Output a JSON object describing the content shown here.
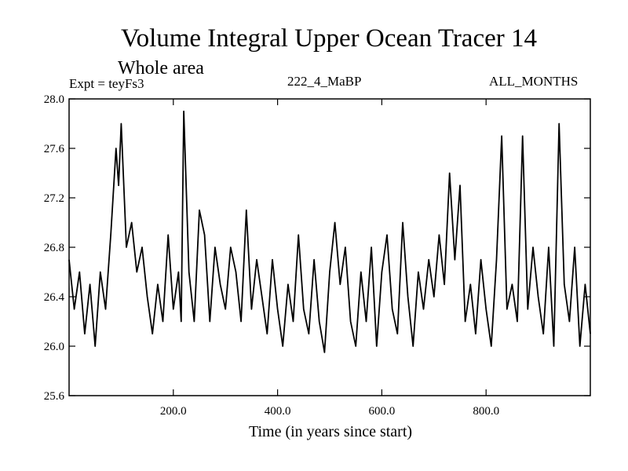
{
  "header": {
    "title": "Volume Integral Upper Ocean Tracer 14",
    "subtitle": "Whole area",
    "experiment": "Expt = teyFs3",
    "run": "222_4_MaBP",
    "months": "ALL_MONTHS"
  },
  "chart_data": {
    "type": "line",
    "title": "Volume Integral Upper Ocean Tracer 14",
    "subtitle": "Whole area",
    "xlabel": "Time (in years since start)",
    "ylabel": "",
    "xlim": [
      0,
      1000
    ],
    "ylim": [
      25.6,
      28.0
    ],
    "xticks": [
      200,
      400,
      600,
      800
    ],
    "xtick_labels": [
      "200.0",
      "400.0",
      "600.0",
      "800.0"
    ],
    "yticks": [
      25.6,
      26.0,
      26.4,
      26.8,
      27.2,
      27.6,
      28.0
    ],
    "ytick_labels": [
      "25.6",
      "26.0",
      "26.4",
      "26.8",
      "27.2",
      "27.6",
      "28.0"
    ],
    "grid": false,
    "series": [
      {
        "name": "Tracer 14",
        "x": [
          0,
          10,
          20,
          30,
          40,
          50,
          60,
          70,
          80,
          90,
          95,
          100,
          110,
          120,
          130,
          140,
          150,
          160,
          170,
          180,
          190,
          200,
          210,
          215,
          220,
          230,
          240,
          250,
          260,
          270,
          280,
          290,
          300,
          310,
          320,
          330,
          340,
          350,
          360,
          370,
          380,
          390,
          400,
          410,
          420,
          430,
          440,
          450,
          460,
          470,
          480,
          490,
          500,
          510,
          520,
          530,
          540,
          550,
          560,
          570,
          580,
          590,
          600,
          610,
          620,
          630,
          640,
          650,
          660,
          670,
          680,
          690,
          700,
          710,
          720,
          730,
          740,
          750,
          760,
          770,
          780,
          790,
          800,
          810,
          820,
          830,
          840,
          850,
          860,
          870,
          880,
          890,
          900,
          910,
          920,
          930,
          940,
          950,
          960,
          970,
          980,
          990,
          1000
        ],
        "values": [
          26.7,
          26.3,
          26.6,
          26.1,
          26.5,
          26.0,
          26.6,
          26.3,
          26.9,
          27.6,
          27.3,
          27.8,
          26.8,
          27.0,
          26.6,
          26.8,
          26.4,
          26.1,
          26.5,
          26.2,
          26.9,
          26.3,
          26.6,
          26.2,
          27.9,
          26.6,
          26.2,
          27.1,
          26.9,
          26.2,
          26.8,
          26.5,
          26.3,
          26.8,
          26.6,
          26.2,
          27.1,
          26.3,
          26.7,
          26.4,
          26.1,
          26.7,
          26.3,
          26.0,
          26.5,
          26.2,
          26.9,
          26.3,
          26.1,
          26.7,
          26.2,
          25.95,
          26.6,
          27.0,
          26.5,
          26.8,
          26.2,
          26.0,
          26.6,
          26.2,
          26.8,
          26.0,
          26.6,
          26.9,
          26.3,
          26.1,
          27.0,
          26.4,
          26.0,
          26.6,
          26.3,
          26.7,
          26.4,
          26.9,
          26.5,
          27.4,
          26.7,
          27.3,
          26.2,
          26.5,
          26.1,
          26.7,
          26.3,
          26.0,
          26.7,
          27.7,
          26.3,
          26.5,
          26.2,
          27.7,
          26.3,
          26.8,
          26.4,
          26.1,
          26.8,
          26.0,
          27.8,
          26.5,
          26.2,
          26.8,
          26.0,
          26.5,
          26.1
        ]
      }
    ]
  }
}
